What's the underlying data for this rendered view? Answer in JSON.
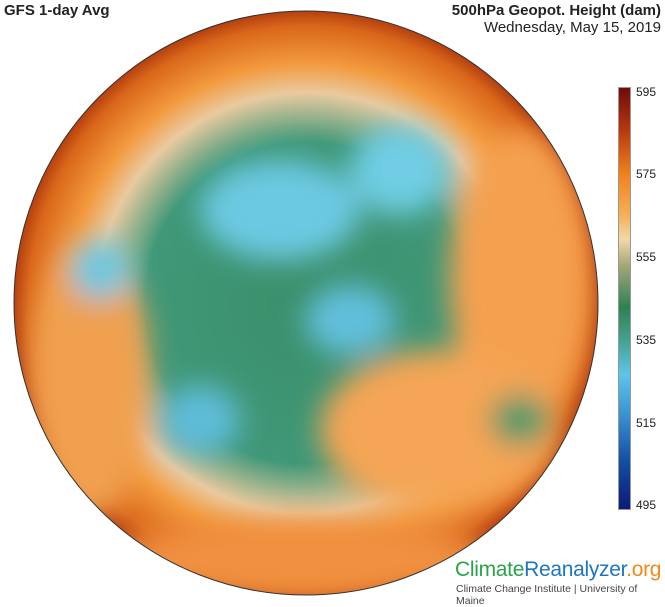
{
  "header": {
    "left_title": "GFS 1-day Avg",
    "right_title": "500hPa Geopot. Height (dam)",
    "date": "Wednesday, May 15, 2019"
  },
  "colorbar": {
    "ticks": [
      "595",
      "575",
      "555",
      "535",
      "515",
      "495"
    ],
    "min": 495,
    "max": 595,
    "colors": {
      "595": "#6e0b0b",
      "575": "#f07f1a",
      "555": "#2f8152",
      "535": "#5cc6e9",
      "515": "#1552a6",
      "495": "#0b1a78"
    }
  },
  "logo": {
    "part1": "Climate",
    "part2": "Reanalyzer",
    ".org": ".org",
    "subtitle": "Climate Change Institute | University of Maine"
  }
}
